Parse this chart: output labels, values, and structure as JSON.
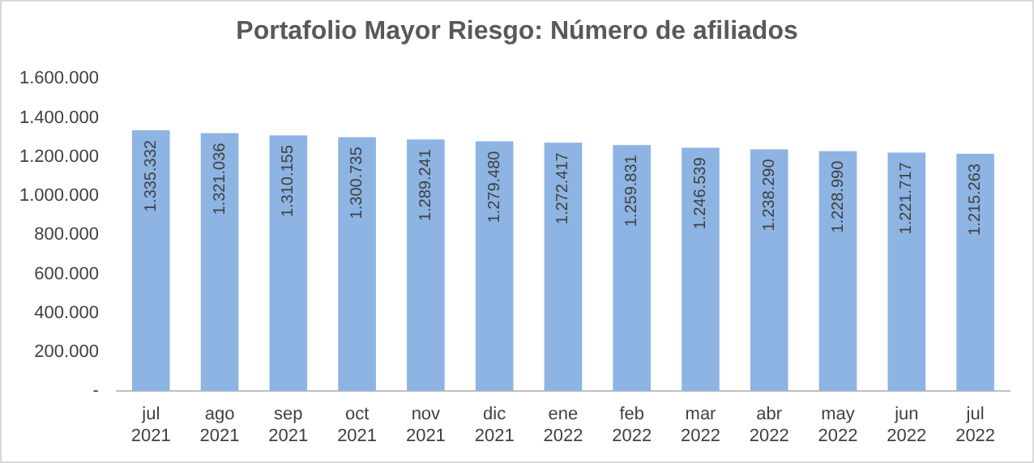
{
  "chart_data": {
    "type": "bar",
    "title": "Portafolio Mayor Riesgo: Número de afiliados",
    "categories": [
      "jul 2021",
      "ago 2021",
      "sep 2021",
      "oct 2021",
      "nov 2021",
      "dic 2021",
      "ene 2022",
      "feb 2022",
      "mar 2022",
      "abr 2022",
      "may 2022",
      "jun 2022",
      "jul 2022"
    ],
    "values": [
      1335332,
      1321036,
      1310155,
      1300735,
      1289241,
      1279480,
      1272417,
      1259831,
      1246539,
      1238290,
      1228990,
      1221717,
      1215263
    ],
    "color": "#8db4e2",
    "ylim": [
      0,
      1600000
    ],
    "yticks": [
      {
        "value": 0,
        "label": "-"
      },
      {
        "value": 200000,
        "label": "200.000"
      },
      {
        "value": 400000,
        "label": "400.000"
      },
      {
        "value": 600000,
        "label": "600.000"
      },
      {
        "value": 800000,
        "label": "800.000"
      },
      {
        "value": 1000000,
        "label": "1.000.000"
      },
      {
        "value": 1200000,
        "label": "1.200.000"
      },
      {
        "value": 1400000,
        "label": "1.400.000"
      },
      {
        "value": 1600000,
        "label": "1.600.000"
      }
    ],
    "value_labels": [
      "1.335.332",
      "1.321.036",
      "1.310.155",
      "1.300.735",
      "1.289.241",
      "1.279.480",
      "1.272.417",
      "1.259.831",
      "1.246.539",
      "1.238.290",
      "1.228.990",
      "1.221.717",
      "1.215.263"
    ],
    "grid": false,
    "legend": false
  }
}
